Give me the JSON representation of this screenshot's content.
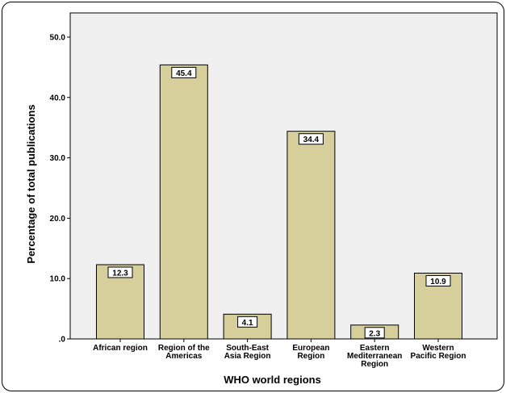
{
  "chart_data": {
    "type": "bar",
    "categories": [
      [
        "African region"
      ],
      [
        "Region of the",
        "Americas"
      ],
      [
        "South-East",
        "Asia Region"
      ],
      [
        "European",
        "Region"
      ],
      [
        "Eastern",
        "Mediterranean",
        "Region"
      ],
      [
        "Western",
        "Pacific Region"
      ]
    ],
    "values": [
      12.3,
      45.4,
      4.1,
      34.4,
      2.3,
      10.9
    ],
    "data_labels": [
      "12.3",
      "45.4",
      "4.1",
      "34.4",
      "2.3",
      "10.9"
    ],
    "yticks": [
      0,
      10,
      20,
      30,
      40,
      50
    ],
    "ytick_labels": [
      ".0",
      "10.0",
      "20.0",
      "30.0",
      "40.0",
      "50.0"
    ],
    "ylim": [
      0,
      50
    ],
    "xlabel": "WHO world regions",
    "ylabel": "Percentage of total publications",
    "grid": false,
    "colors": {
      "bar_fill": "#d6cf9c",
      "plot_background": "#f0f0f0",
      "stroke": "#000000"
    }
  }
}
